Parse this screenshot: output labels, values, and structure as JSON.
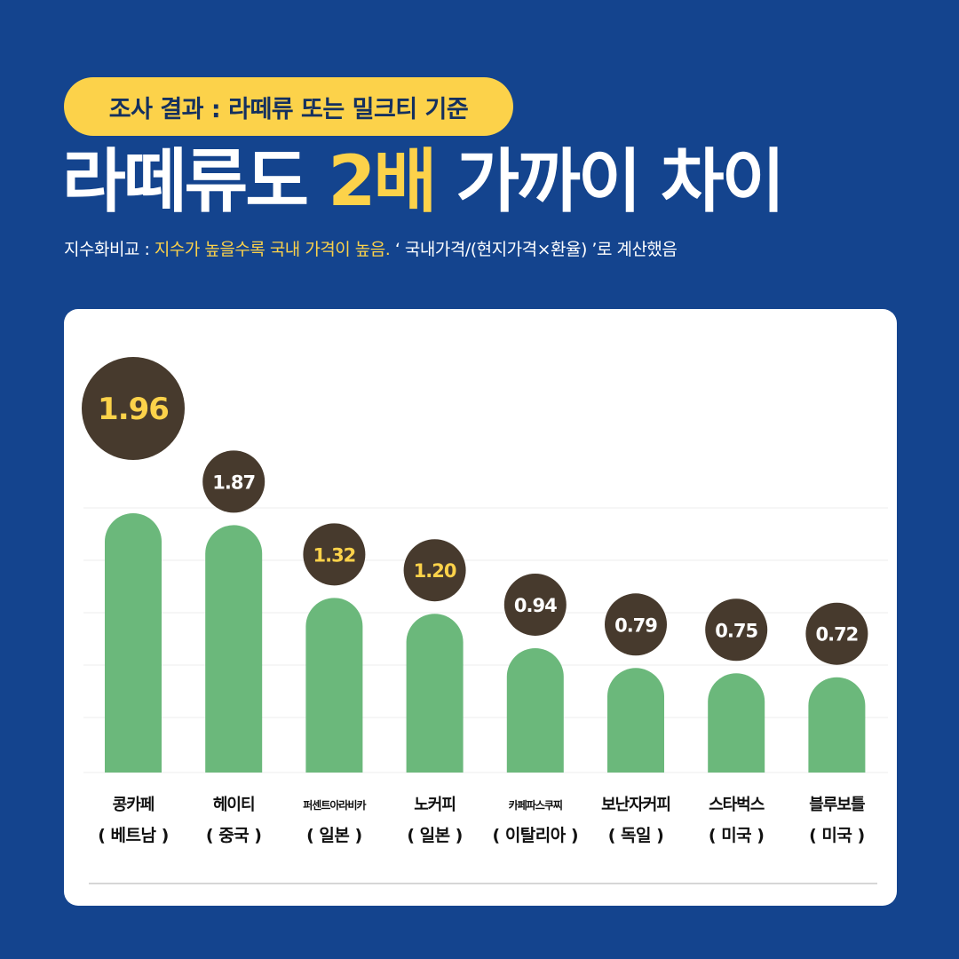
{
  "header": {
    "badge": "조사 결과 : 라떼류 또는 밀크티 기준",
    "title_pre": "라떼류도 ",
    "title_highlight": "2배",
    "title_post": " 가까이 차이",
    "note_label": "지수화비교 : ",
    "note_highlight": "지수가 높을수록 국내 가격이 높음.",
    "note_rest": " ‘ 국내가격/(현지가격×환율) ’로  계산했음"
  },
  "colors": {
    "background": "#14448e",
    "accent": "#fcd24a",
    "bar": "#6bb87b",
    "bubble": "#473a2d"
  },
  "chart_data": {
    "type": "bar",
    "categories": [
      "콩카페",
      "헤이티",
      "퍼센트아라비카",
      "노커피",
      "카페파스쿠찌",
      "보난자커피",
      "스타벅스",
      "블루보틀"
    ],
    "countries": [
      "( 베트남 )",
      "( 중국 )",
      "( 일본 )",
      "( 일본 )",
      "( 이탈리아 )",
      "( 독일 )",
      "( 미국 )",
      "( 미국 )"
    ],
    "values": [
      1.96,
      1.87,
      1.32,
      1.2,
      0.94,
      0.79,
      0.75,
      0.72
    ],
    "value_labels": [
      "1.96",
      "1.87",
      "1.32",
      "1.20",
      "0.94",
      "0.79",
      "0.75",
      "0.72"
    ],
    "highlight_labels": [
      true,
      false,
      true,
      true,
      false,
      false,
      false,
      false
    ],
    "grid": true
  }
}
